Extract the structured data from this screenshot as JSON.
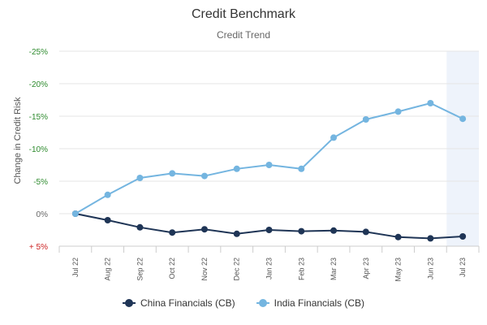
{
  "chart_data": {
    "type": "line",
    "title": "Credit Benchmark",
    "subtitle": "Credit Trend",
    "ylabel": "Change in Credit Risk",
    "categories": [
      "Jul 22",
      "Aug 22",
      "Sep 22",
      "Oct 22",
      "Nov 22",
      "Dec 22",
      "Jan 23",
      "Feb 23",
      "Mar 23",
      "Apr 23",
      "May 23",
      "Jun 23",
      "Jul 23"
    ],
    "y_ticks": [
      {
        "value": 25,
        "label": "-25%"
      },
      {
        "value": 20,
        "label": "-20%"
      },
      {
        "value": 15,
        "label": "-15%"
      },
      {
        "value": 10,
        "label": "-10%"
      },
      {
        "value": 5,
        "label": "-5%"
      },
      {
        "value": 0,
        "label": "0%"
      },
      {
        "value": -5,
        "label": "+ 5%"
      }
    ],
    "ylim": [
      -5,
      25
    ],
    "grid": true,
    "highlight_category": "Jul 23",
    "legend_position": "bottom-center",
    "series": [
      {
        "name": "China Financials (CB)",
        "color": "#1f3556",
        "values": [
          0,
          -1.0,
          -2.1,
          -2.9,
          -2.4,
          -3.1,
          -2.5,
          -2.7,
          -2.6,
          -2.8,
          -3.6,
          -3.8,
          -3.5
        ]
      },
      {
        "name": "India Financials (CB)",
        "color": "#74b5e0",
        "values": [
          0,
          2.9,
          5.5,
          6.2,
          5.8,
          6.9,
          7.5,
          6.9,
          11.7,
          14.5,
          15.7,
          17.0,
          14.6
        ]
      }
    ],
    "colors": {
      "tick_negative": "#2e8b2e",
      "tick_positive": "#cc2222",
      "highlight_band": "#eef3fb"
    }
  }
}
